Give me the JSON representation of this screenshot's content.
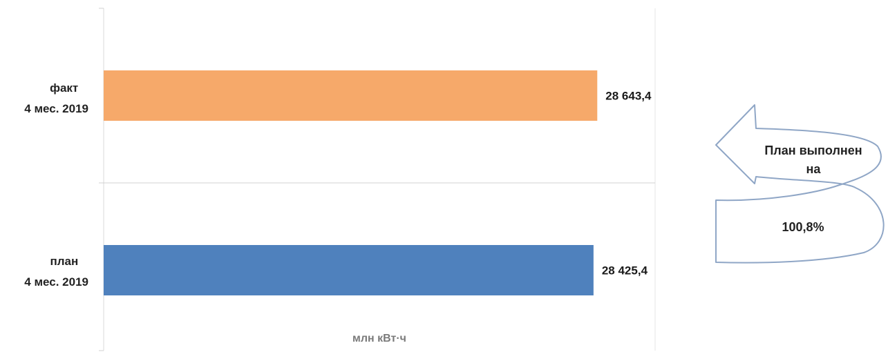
{
  "chart_data": {
    "type": "bar",
    "orientation": "horizontal",
    "categories": [
      [
        "факт",
        "4 мес. 2019"
      ],
      [
        "план",
        "4 мес. 2019"
      ]
    ],
    "values": [
      28643.4,
      28425.4
    ],
    "value_labels": [
      "28 643,4",
      "28 425,4"
    ],
    "colors": [
      "#F6A96A",
      "#4F81BD"
    ],
    "xlabel": "млн кВт·ч",
    "xlim": [
      0,
      32000
    ],
    "grid": true
  },
  "callout": {
    "line1": "План выполнен",
    "line2": "на",
    "percent": "100,8%"
  }
}
